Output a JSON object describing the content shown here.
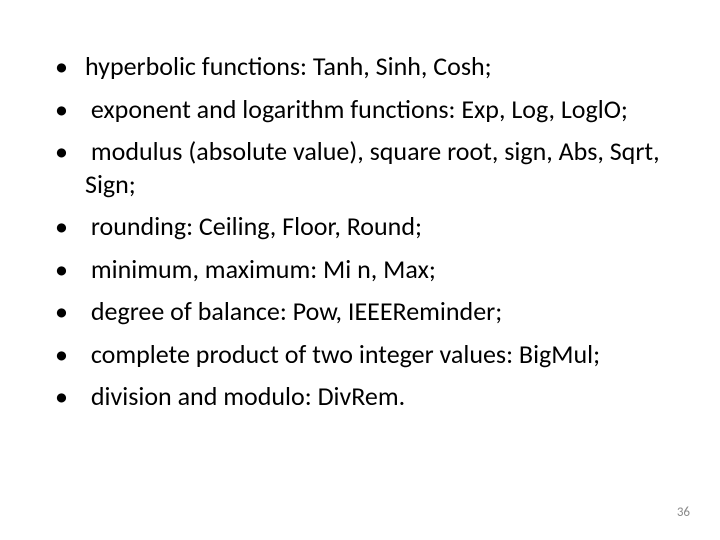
{
  "page": {
    "number": "36",
    "text_color": "#000000",
    "page_number_color": "#8a8a8a",
    "background_color": "#ffffff",
    "font_family": "Calibri",
    "bullet_fontsize": 26,
    "line_height": 1.25,
    "bullet_char": "•"
  },
  "bullets": [
    {
      "text": "hyperbolic functions: Tanh, Sinh, Cosh;"
    },
    {
      "text": " exponent and logarithm functions: Exp, Log, LoglO;"
    },
    {
      "text": " modulus (absolute value), square root, sign, Abs, Sqrt, Sign;"
    },
    {
      "text": " rounding: Ceiling, Floor, Round;"
    },
    {
      "text": " minimum, maximum: Mi n, Max;"
    },
    {
      "text": " degree of balance: Pow, IEEEReminder;"
    },
    {
      "text": " complete product of two integer values: BigMul;"
    },
    {
      "text": " division and modulo: DivRem."
    }
  ]
}
